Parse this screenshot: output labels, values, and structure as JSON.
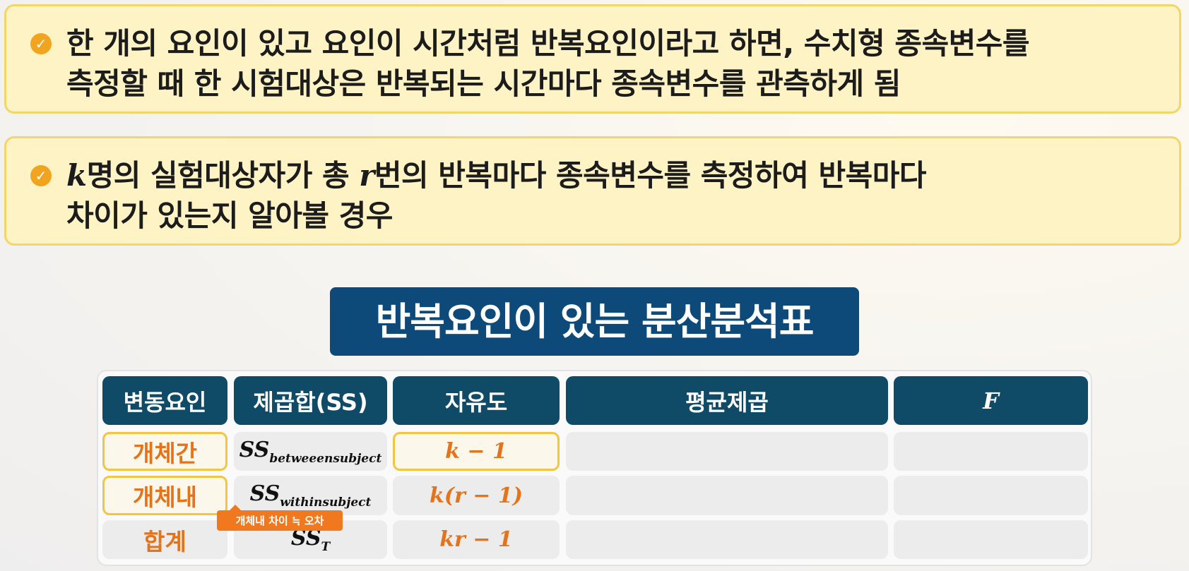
{
  "notes": [
    {
      "line1": "한 개의 요인이 있고 요인이 시간처럼 반복요인이라고 하면, 수치형 종속변수를",
      "line2": "측정할 때 한 시험대상은 반복되는 시간마다 종속변수를 관측하게 됨"
    },
    {
      "var_k": "k",
      "line1a": "명의 실험대상자가 총 ",
      "var_r": "r",
      "line1b": "번의 반복마다 종속변수를 측정하여 반복마다",
      "line2": "차이가 있는지 알아볼 경우"
    }
  ],
  "table_title": "반복요인이 있는 분산분석표",
  "table": {
    "headers": [
      "변동요인",
      "제곱합(SS)",
      "자유도",
      "평균제곱",
      "F"
    ],
    "rows": [
      {
        "source": "개체간",
        "ss_main": "SS",
        "ss_sub": "betweeensubject",
        "df": "k − 1"
      },
      {
        "source": "개체내",
        "ss_main": "SS",
        "ss_sub": "withinsubject",
        "df": "k(r − 1)"
      },
      {
        "source": "합계",
        "ss_main": "SS",
        "ss_sub": "T",
        "df": "kr − 1"
      }
    ]
  },
  "tooltip": "개체내 차이 ≒ 오차",
  "colors": {
    "note_bg": "#fdf3c4",
    "title_bg": "#0d4a7a",
    "header_bg": "#0f4a66",
    "accent": "#e4731c"
  }
}
